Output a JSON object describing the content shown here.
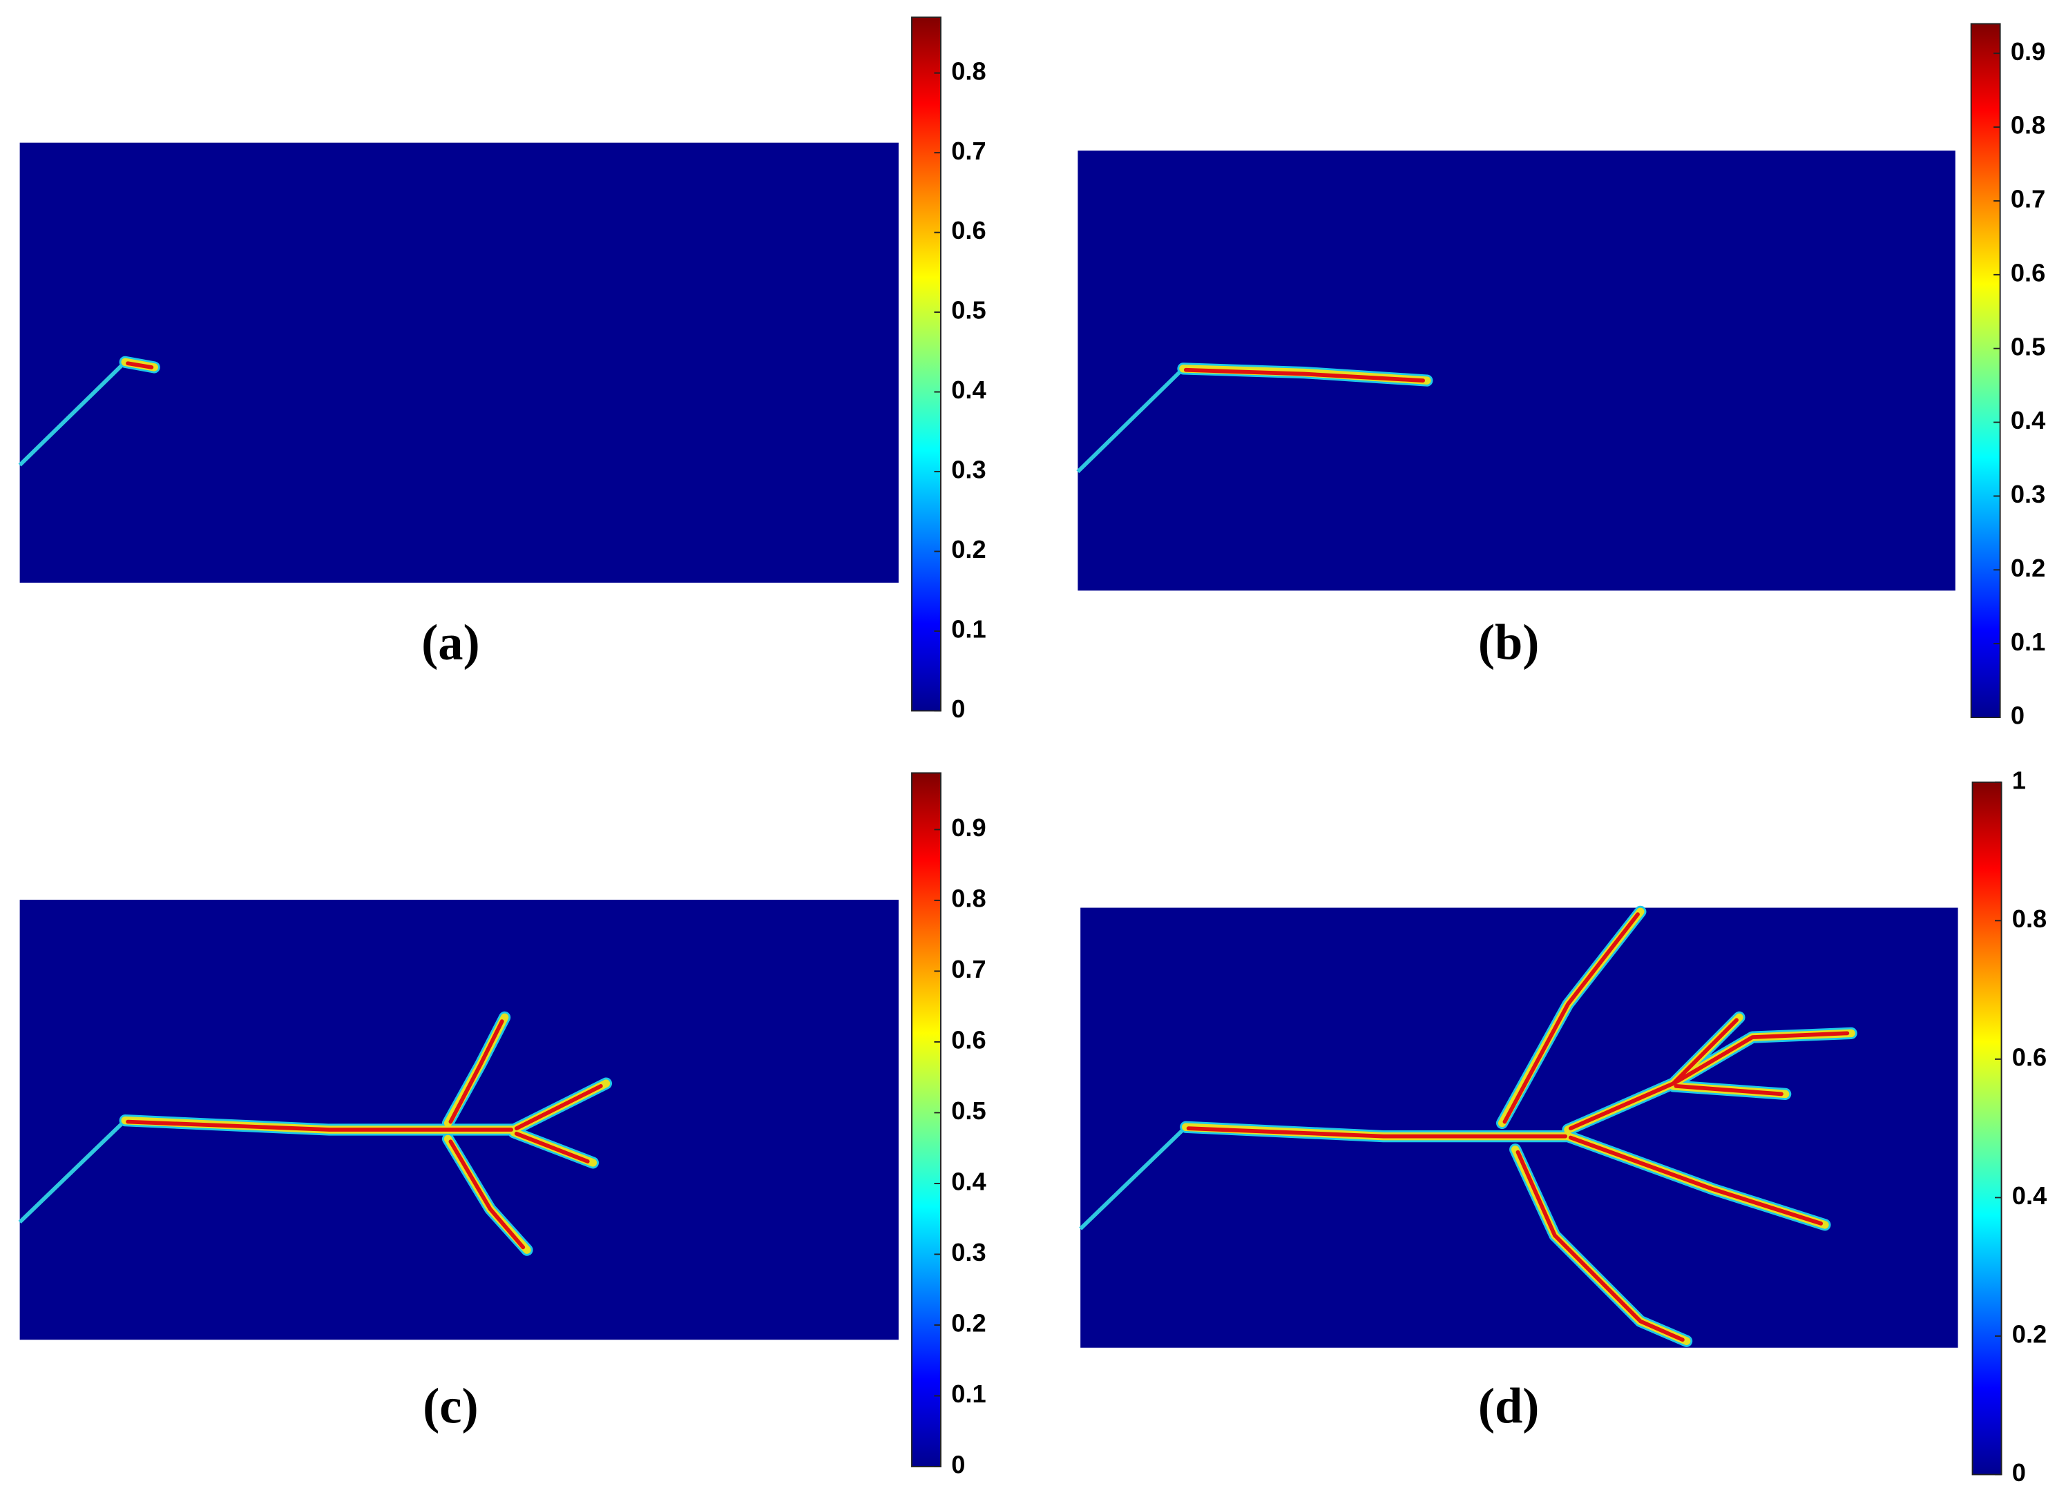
{
  "chart_data": [
    {
      "type": "field",
      "title": "(a)",
      "colormap": "jet",
      "clim": [
        0,
        0.87
      ],
      "cticks": [
        0,
        0.1,
        0.2,
        0.3,
        0.4,
        0.5,
        0.6,
        0.7,
        0.8
      ]
    },
    {
      "type": "field",
      "title": "(b)",
      "colormap": "jet",
      "clim": [
        0,
        0.94
      ],
      "cticks": [
        0,
        0.1,
        0.2,
        0.3,
        0.4,
        0.5,
        0.6,
        0.7,
        0.8,
        0.9
      ]
    },
    {
      "type": "field",
      "title": "(c)",
      "colormap": "jet",
      "clim": [
        0,
        0.98
      ],
      "cticks": [
        0,
        0.1,
        0.2,
        0.3,
        0.4,
        0.5,
        0.6,
        0.7,
        0.8,
        0.9
      ]
    },
    {
      "type": "field",
      "title": "(d)",
      "colormap": "jet",
      "clim": [
        0,
        1
      ],
      "cticks": [
        0,
        0.2,
        0.4,
        0.6,
        0.8,
        1
      ]
    }
  ]
}
